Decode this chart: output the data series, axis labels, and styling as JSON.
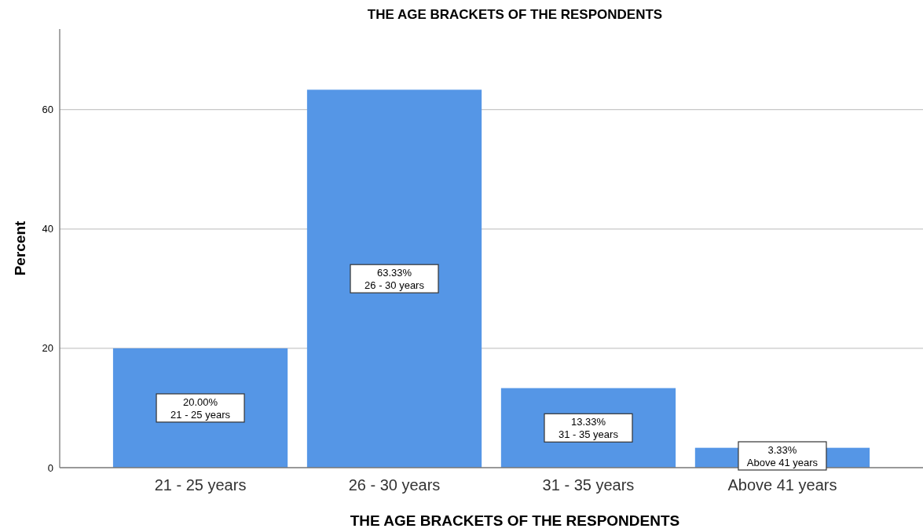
{
  "chart_data": {
    "type": "bar",
    "title": "THE AGE BRACKETS OF THE RESPONDENTS",
    "xlabel": "THE AGE BRACKETS OF THE RESPONDENTS",
    "ylabel": "Percent",
    "categories": [
      "21 - 25 years",
      "26 - 30 years",
      "31 - 35 years",
      "Above 41 years"
    ],
    "values": [
      20.0,
      63.33,
      13.33,
      3.33
    ],
    "value_labels": [
      "20.00%",
      "63.33%",
      "13.33%",
      "3.33%"
    ],
    "color": "#5596e6",
    "ylim": [
      0,
      73.5
    ],
    "yticks": [
      0,
      20,
      40,
      60
    ],
    "grid": "y"
  }
}
